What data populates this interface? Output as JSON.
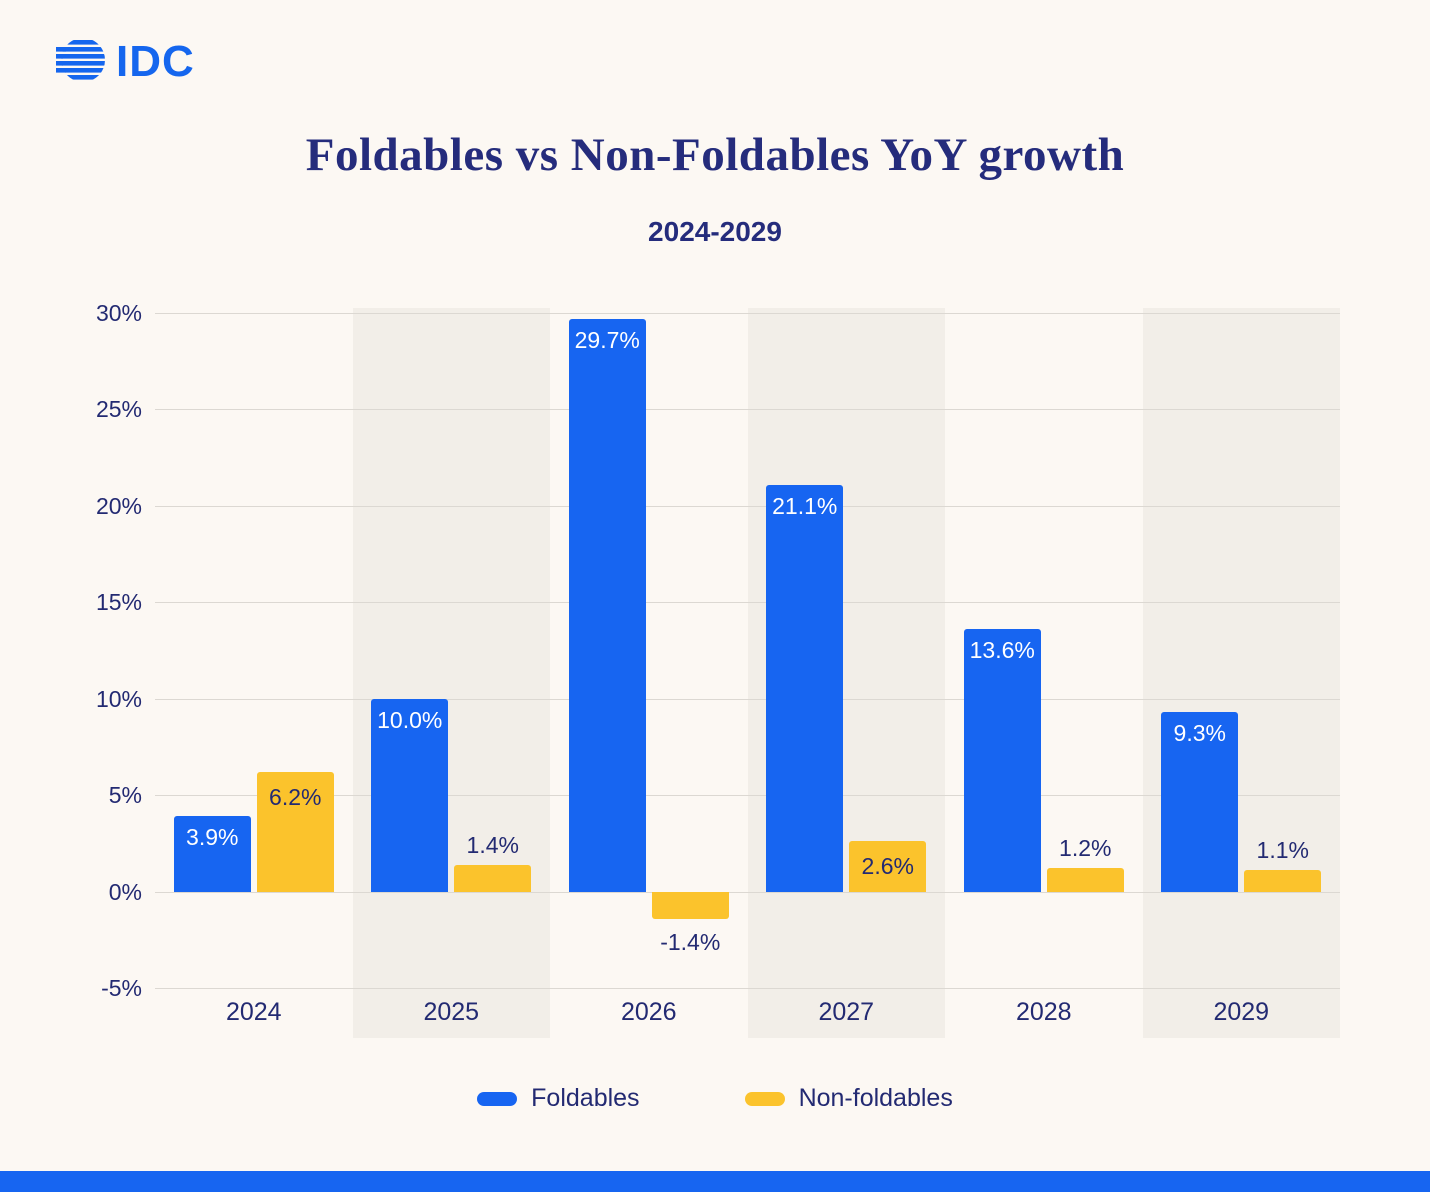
{
  "logo": {
    "text": "IDC"
  },
  "chart": {
    "title": "Foldables vs Non-Foldables YoY growth",
    "subtitle": "2024-2029"
  },
  "chart_data": {
    "type": "bar",
    "title": "Foldables vs Non-Foldables YoY growth",
    "subtitle": "2024-2029",
    "categories": [
      "2024",
      "2025",
      "2026",
      "2027",
      "2028",
      "2029"
    ],
    "series": [
      {
        "name": "Foldables",
        "color": "#1765F1",
        "values": [
          3.9,
          10.0,
          29.7,
          21.1,
          13.6,
          9.3
        ],
        "labels": [
          "3.9%",
          "10.0%",
          "29.7%",
          "21.1%",
          "13.6%",
          "9.3%"
        ]
      },
      {
        "name": "Non-foldables",
        "color": "#FBC32C",
        "values": [
          6.2,
          1.4,
          -1.4,
          2.6,
          1.2,
          1.1
        ],
        "labels": [
          "6.2%",
          "1.4%",
          "-1.4%",
          "2.6%",
          "1.2%",
          "1.1%"
        ]
      }
    ],
    "ylim": [
      -5,
      30
    ],
    "yticks": [
      30,
      25,
      20,
      15,
      10,
      5,
      0,
      -5
    ],
    "ytick_labels": [
      "30%",
      "25%",
      "20%",
      "15%",
      "10%",
      "5%",
      "0%",
      "-5%"
    ],
    "grid": true,
    "legend_position": "bottom",
    "striped_columns": [
      1,
      3,
      5
    ],
    "colors": {
      "background": "#FCF8F3",
      "stripe": "#F2EEE8",
      "gridline": "#DCD8D2",
      "text_navy": "#232A72",
      "foldables_blue": "#1765F1",
      "nonfoldables_yellow": "#FBC32C",
      "inside_label_on_blue": "#FFFFFF",
      "inside_label_on_yellow": "#232A72",
      "footer_bar": "#1765F1"
    }
  }
}
